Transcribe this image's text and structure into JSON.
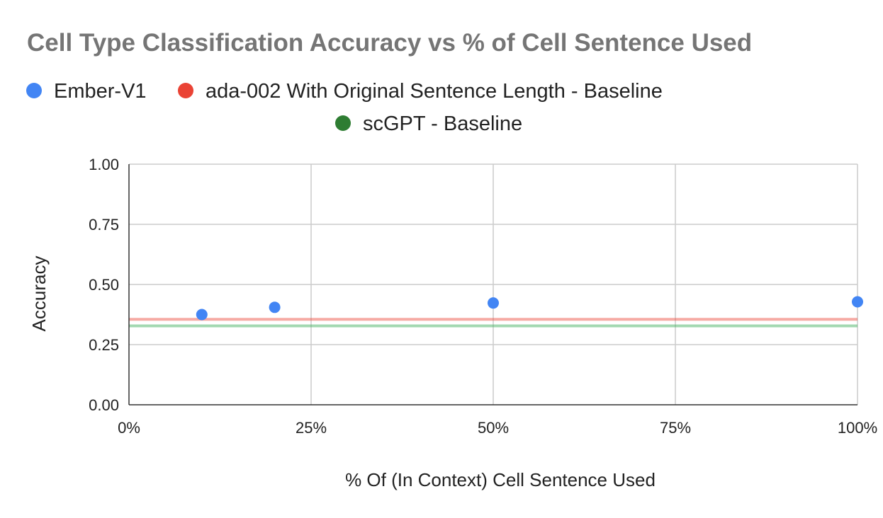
{
  "chart_data": {
    "type": "scatter",
    "title": "Cell Type Classification Accuracy vs % of Cell Sentence Used",
    "xlabel": "% Of (In Context) Cell Sentence Used",
    "ylabel": "Accuracy",
    "xlim": [
      0,
      100
    ],
    "ylim": [
      0,
      1
    ],
    "x_ticks": [
      {
        "value": 0,
        "label": "0%"
      },
      {
        "value": 25,
        "label": "25%"
      },
      {
        "value": 50,
        "label": "50%"
      },
      {
        "value": 75,
        "label": "75%"
      },
      {
        "value": 100,
        "label": "100%"
      }
    ],
    "y_ticks": [
      {
        "value": 0,
        "label": "0.00"
      },
      {
        "value": 0.25,
        "label": "0.25"
      },
      {
        "value": 0.5,
        "label": "0.50"
      },
      {
        "value": 0.75,
        "label": "0.75"
      },
      {
        "value": 1,
        "label": "1.00"
      }
    ],
    "grid": true,
    "legend_placement": "top",
    "series": [
      {
        "name": "Ember-V1",
        "kind": "points",
        "color": "#4285f4",
        "points": [
          {
            "x": 10,
            "y": 0.375
          },
          {
            "x": 20,
            "y": 0.405
          },
          {
            "x": 50,
            "y": 0.423
          },
          {
            "x": 100,
            "y": 0.428
          }
        ]
      },
      {
        "name": "ada-002 With Original Sentence Length - Baseline",
        "kind": "hline",
        "color": "#ea4335",
        "y": 0.355
      },
      {
        "name": "scGPT - Baseline",
        "kind": "hline",
        "color": "#34a853",
        "legend_color": "#2e7d32",
        "y": 0.328
      }
    ]
  }
}
